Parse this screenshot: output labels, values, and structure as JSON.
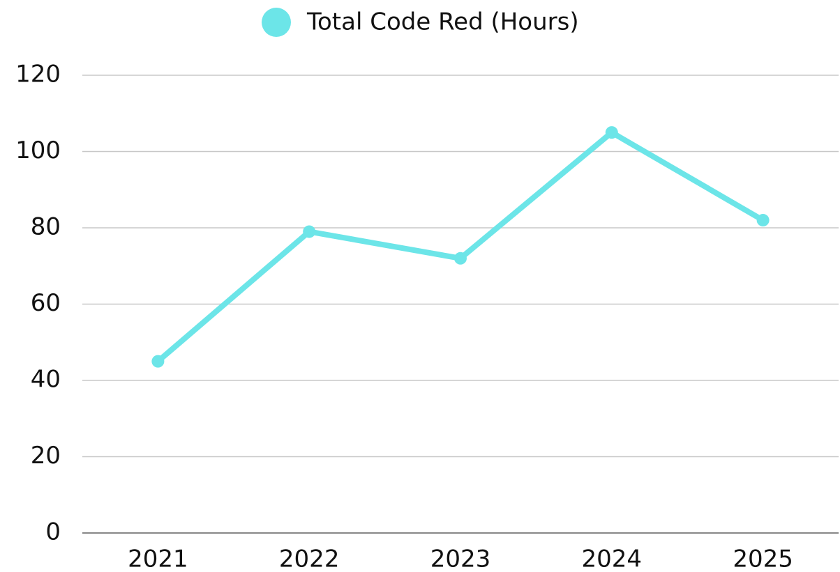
{
  "chart_data": {
    "type": "line",
    "categories": [
      "2021",
      "2022",
      "2023",
      "2024",
      "2025"
    ],
    "series": [
      {
        "name": "Total Code Red (Hours)",
        "color": "#6ce5e8",
        "values": [
          45,
          79,
          72,
          105,
          82
        ]
      }
    ],
    "ylim": [
      0,
      120
    ],
    "yticks": [
      0,
      20,
      40,
      60,
      80,
      100,
      120
    ],
    "grid": true,
    "legend": "top"
  }
}
